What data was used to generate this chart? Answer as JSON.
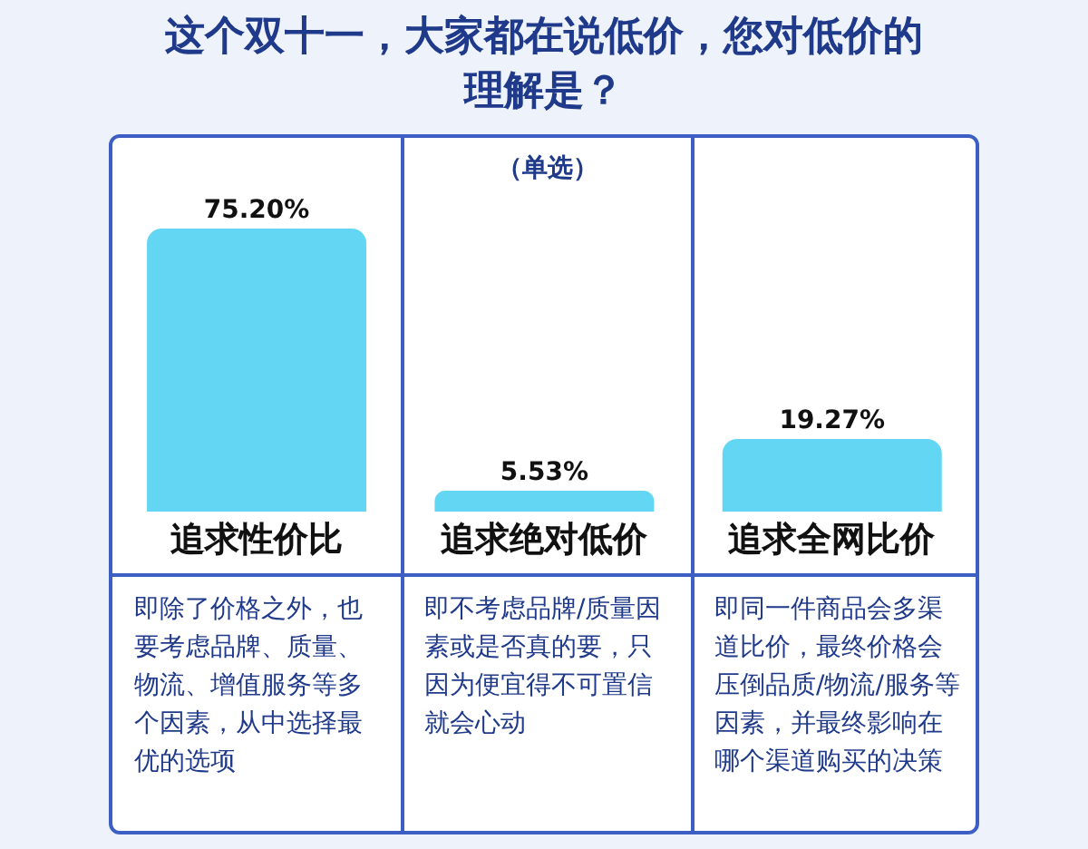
{
  "chart_data": {
    "type": "bar",
    "title": "这个双十一，大家都在说低价，您对低价的理解是？",
    "subtitle": "（单选）",
    "categories": [
      "追求性价比",
      "追求绝对低价",
      "追求全网比价"
    ],
    "values": [
      75.2,
      5.53,
      19.27
    ],
    "value_labels": [
      "75.20%",
      "5.53%",
      "19.27%"
    ],
    "color": "#62d6f2",
    "annotations": [
      "即除了价格之外，也要考虑品牌、质量、物流、增值服务等多个因素，从中选择最优的选项",
      "即不考虑品牌/质量因素或是否真的要，只因为便宜得不可置信就会心动",
      "即同一件商品会多渠道比价，最终价格会压倒品质/物流/服务等因素，并最终影响在哪个渠道购买的决策"
    ]
  }
}
